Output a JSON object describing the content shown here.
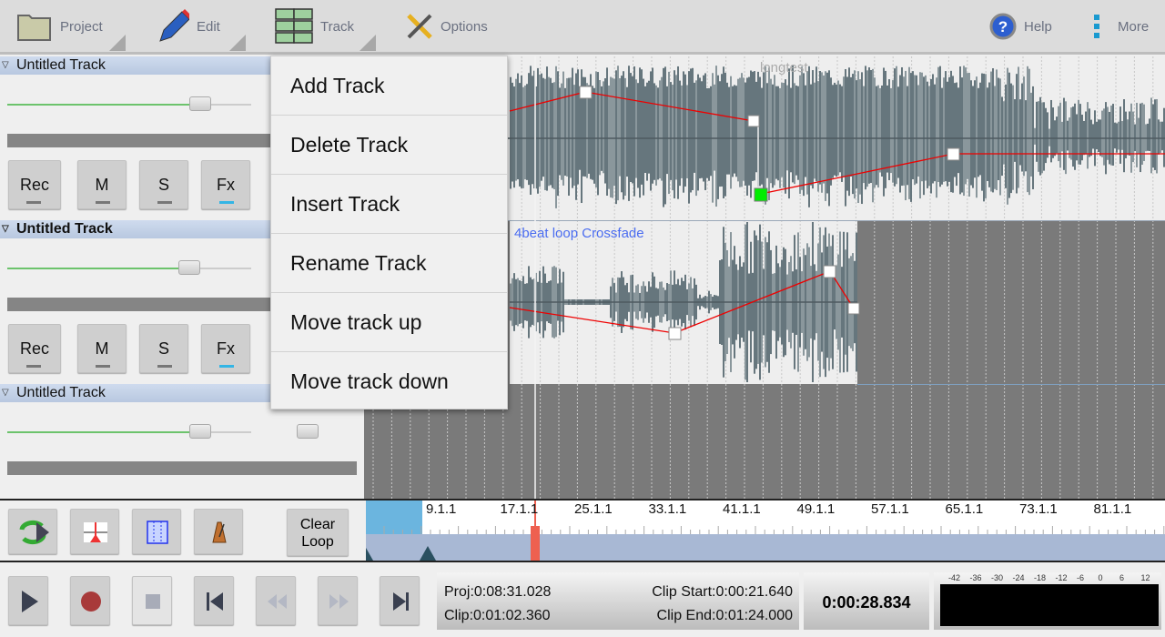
{
  "toolbar": {
    "project": "Project",
    "edit": "Edit",
    "track": "Track",
    "options": "Options",
    "help": "Help",
    "more": "More"
  },
  "tracks": [
    {
      "name": "Untitled Track",
      "rec": "Rec",
      "mute": "M",
      "solo": "S",
      "fx": "Fx",
      "volume_fraction": 0.8
    },
    {
      "name": "Untitled Track",
      "rec": "Rec",
      "mute": "M",
      "solo": "S",
      "fx": "Fx",
      "volume_fraction": 0.76
    },
    {
      "name": "Untitled Track",
      "volume_fraction": 0.8
    }
  ],
  "clips": {
    "track1": "longtest",
    "track2": "4beat loop Crossfade"
  },
  "menu": {
    "items": [
      "Add Track",
      "Delete Track",
      "Insert Track",
      "Rename Track",
      "Move track up",
      "Move track down"
    ]
  },
  "loop": {
    "clear": "Clear Loop",
    "clear_line1": "Clear",
    "clear_line2": "Loop"
  },
  "ruler": {
    "labels": [
      "9.1.1",
      "17.1.1",
      "25.1.1",
      "33.1.1",
      "41.1.1",
      "49.1.1",
      "57.1.1",
      "65.1.1",
      "73.1.1",
      "81.1.1"
    ]
  },
  "status": {
    "proj": "Proj:0:08:31.028",
    "clip": "Clip:0:01:02.360",
    "clip_start": "Clip Start:0:00:21.640",
    "clip_end": "Clip End:0:01:24.000",
    "time": "0:00:28.834"
  },
  "meter": {
    "scale": [
      "-42",
      "-36",
      "-30",
      "-24",
      "-18",
      "-12",
      "-6",
      "0",
      "6",
      "12"
    ]
  },
  "colors": {
    "accent": "#33b5e5",
    "envelope": "#e00000",
    "loop_region": "#6bb5df",
    "playhead": "#ee6050",
    "selected_node": "#00ee00"
  }
}
